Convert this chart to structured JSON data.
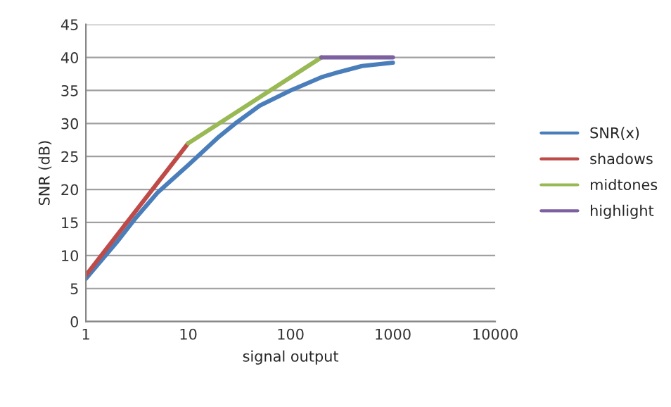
{
  "chart_data": {
    "type": "line",
    "xlabel": "signal output",
    "ylabel": "SNR (dB)",
    "log": "x",
    "xlim": [
      1,
      10000
    ],
    "xticks": [
      1,
      10,
      100,
      1000,
      10000
    ],
    "ylim": [
      0,
      45
    ],
    "yticks": [
      0,
      5,
      10,
      15,
      20,
      25,
      30,
      35,
      40,
      45
    ],
    "grid": "y",
    "legend": "right",
    "line_style": "solid",
    "marker": "none",
    "series": [
      {
        "name": "SNR(x)",
        "color": "#4a7ebb",
        "x": [
          1,
          2,
          3,
          5,
          10,
          20,
          30,
          50,
          100,
          200,
          300,
          500,
          1000
        ],
        "values": [
          6.5,
          12,
          15.5,
          19.5,
          23.7,
          28,
          30.2,
          32.7,
          35,
          37,
          37.8,
          38.7,
          39.2
        ]
      },
      {
        "name": "shadows",
        "color": "#be4b48",
        "x": [
          1,
          10
        ],
        "values": [
          7,
          27
        ]
      },
      {
        "name": "midtones",
        "color": "#98b954",
        "x": [
          10,
          200
        ],
        "values": [
          27,
          40
        ]
      },
      {
        "name": "highlight",
        "color": "#7d60a0",
        "x": [
          200,
          1000
        ],
        "values": [
          40,
          40
        ]
      }
    ]
  }
}
